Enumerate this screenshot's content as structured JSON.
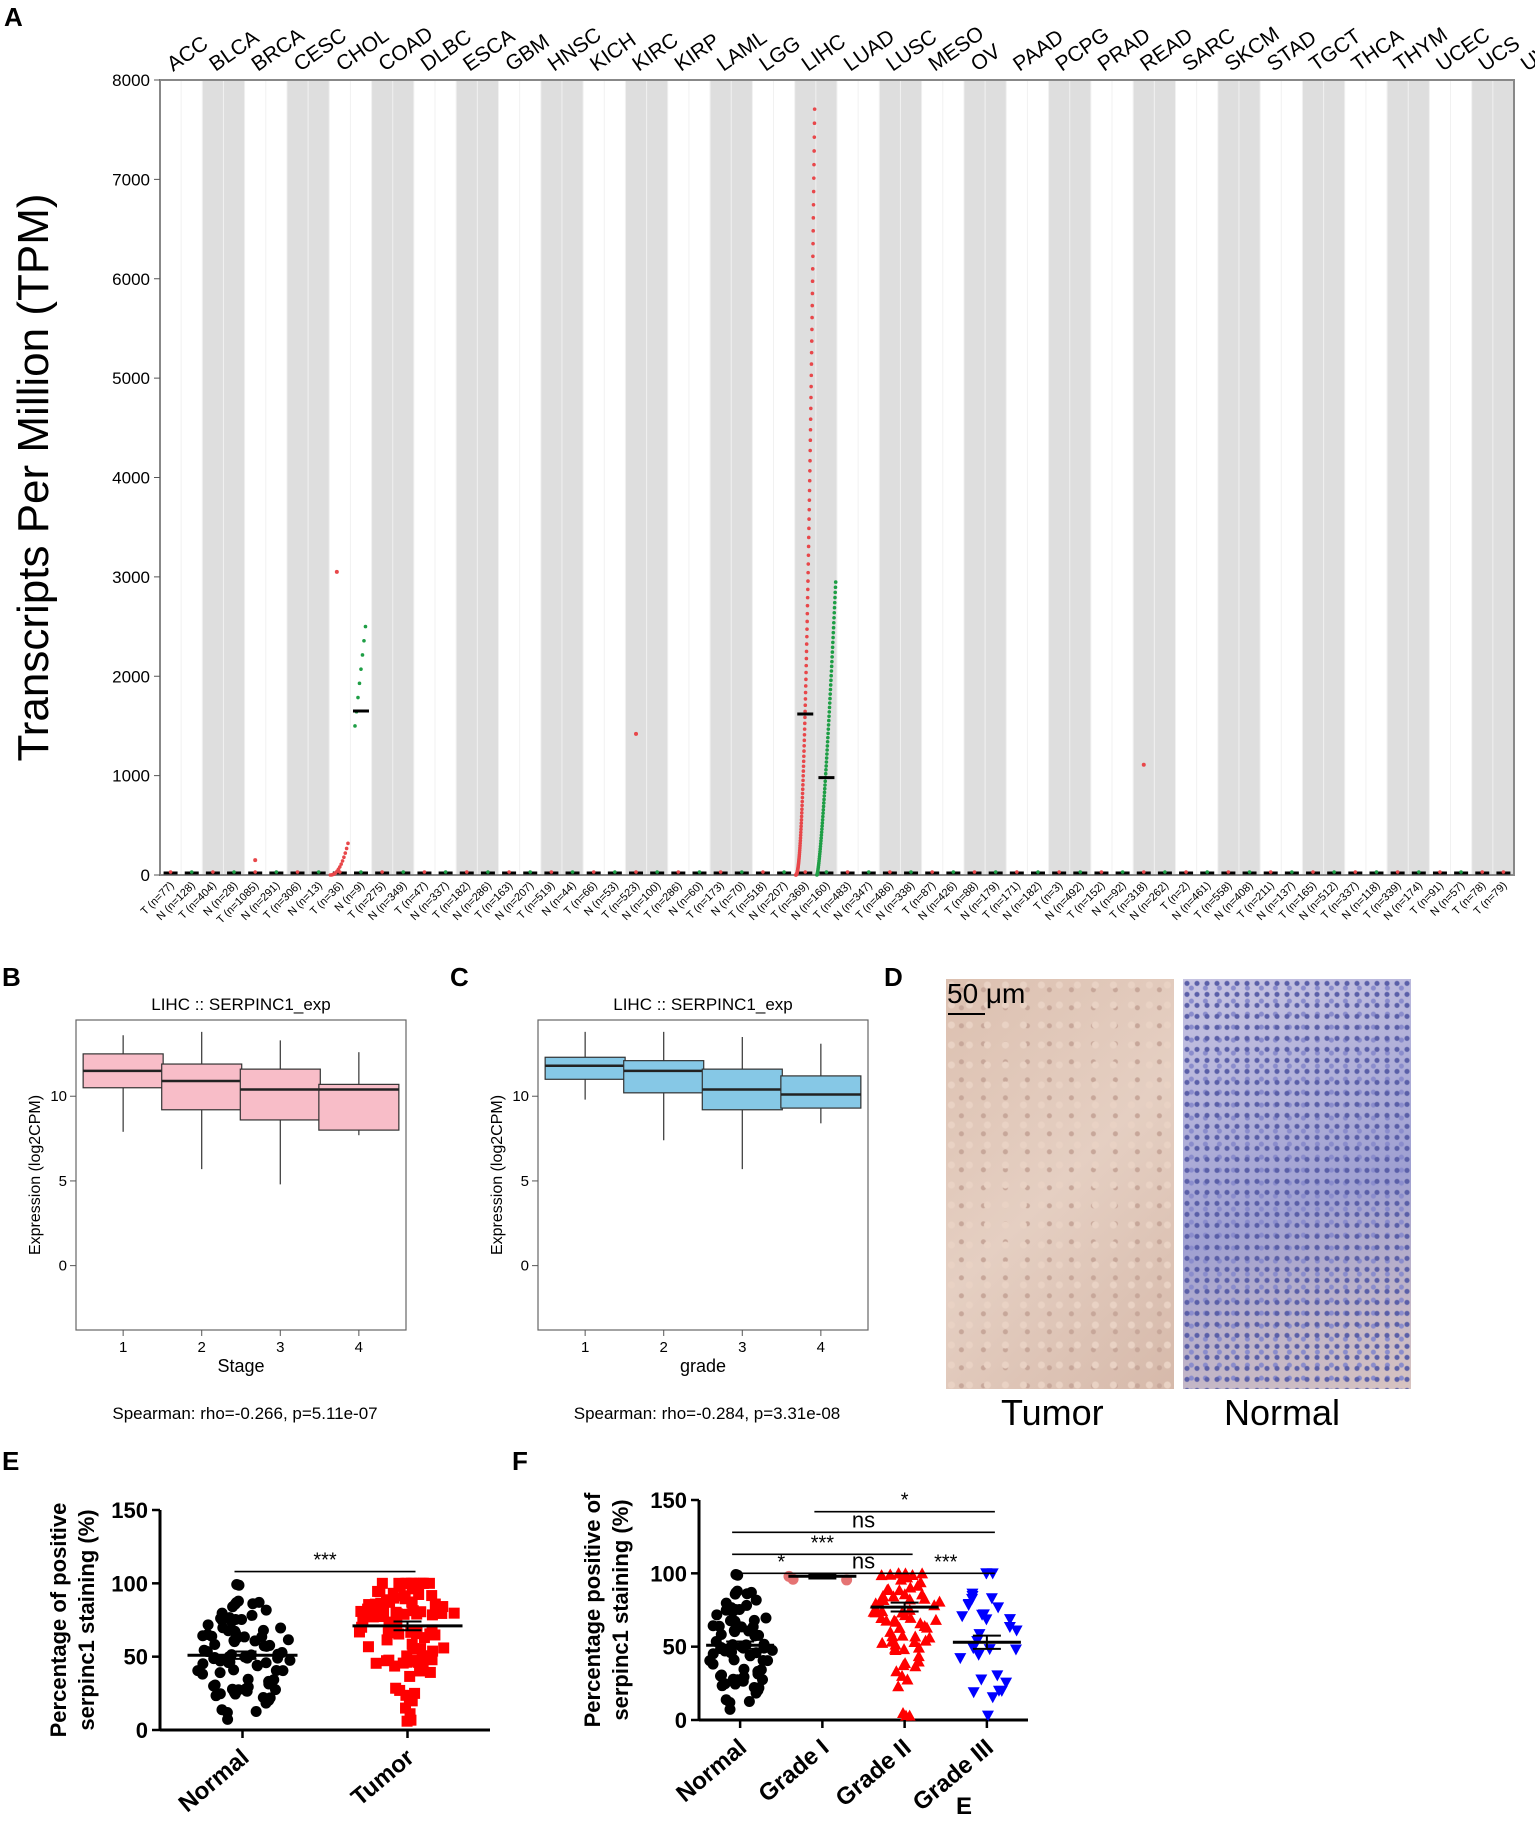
{
  "panels": {
    "a": "A",
    "b": "B",
    "c": "C",
    "d": "D",
    "e": "E",
    "f": "F",
    "stray": "E"
  },
  "chart_data": [
    {
      "id": "A",
      "type": "scatter",
      "ylabel": "Transcripts Per Million (TPM)",
      "ylim": [
        0,
        8000
      ],
      "yticks": [
        0,
        1000,
        2000,
        3000,
        4000,
        5000,
        6000,
        7000,
        8000
      ],
      "cancers": [
        "ACC",
        "BLCA",
        "BRCA",
        "CESC",
        "CHOL",
        "COAD",
        "DLBC",
        "ESCA",
        "GBM",
        "HNSC",
        "KICH",
        "KIRC",
        "KIRP",
        "LAML",
        "LGG",
        "LIHC",
        "LUAD",
        "LUSC",
        "MESO",
        "OV",
        "PAAD",
        "PCPG",
        "PRAD",
        "READ",
        "SARC",
        "SKCM",
        "STAD",
        "TGCT",
        "THCA",
        "THYM",
        "UCEC",
        "UCS",
        "UVM"
      ],
      "groups": [
        "T (n=77)",
        "N (n=128)",
        "T (n=404)",
        "N (n=28)",
        "T (n=1085)",
        "N (n=291)",
        "T (n=306)",
        "N (n=13)",
        "T (n=36)",
        "N (n=9)",
        "T (n=275)",
        "N (n=349)",
        "T (n=47)",
        "N (n=337)",
        "T (n=182)",
        "N (n=286)",
        "T (n=163)",
        "N (n=207)",
        "T (n=519)",
        "N (n=44)",
        "T (n=66)",
        "N (n=53)",
        "T (n=523)",
        "N (n=100)",
        "T (n=286)",
        "N (n=60)",
        "T (n=173)",
        "N (n=70)",
        "T (n=518)",
        "N (n=207)",
        "T (n=369)",
        "N (n=160)",
        "T (n=483)",
        "N (n=347)",
        "T (n=486)",
        "N (n=338)",
        "T (n=87)",
        "N (n=426)",
        "T (n=88)",
        "N (n=179)",
        "T (n=171)",
        "N (n=182)",
        "T (n=3)",
        "N (n=492)",
        "T (n=152)",
        "N (n=92)",
        "T (n=318)",
        "N (n=262)",
        "T (n=2)",
        "N (n=461)",
        "T (n=558)",
        "N (n=408)",
        "T (n=211)",
        "N (n=137)",
        "T (n=165)",
        "N (n=512)",
        "T (n=337)",
        "N (n=118)",
        "T (n=339)",
        "N (n=174)",
        "T (n=91)",
        "N (n=57)",
        "T (n=78)",
        "T (n=79)"
      ],
      "highlights": [
        {
          "cancer": "CHOL",
          "tumor_median": 1650,
          "tumor_max": 2500,
          "normal_max": 3050
        },
        {
          "cancer": "LIHC",
          "tumor_median": 1620,
          "tumor_max": 7850,
          "normal_median": 980,
          "normal_max": 3000
        }
      ],
      "outliers": [
        {
          "cancer": "KIRC",
          "value": 1420
        },
        {
          "cancer": "READ",
          "value": 1110
        },
        {
          "cancer": "BRCA",
          "value": 150
        }
      ],
      "colors": {
        "tumor": "#e8474a",
        "normal": "#1e9e45",
        "band": "#dedede"
      }
    },
    {
      "id": "B",
      "type": "box",
      "title": "LIHC  ::  SERPINC1_exp",
      "xlabel": "Stage",
      "ylabel": "Expression (log2CPM)",
      "ylim": [
        -3.8,
        14.5
      ],
      "yticks": [
        0,
        5,
        10
      ],
      "categories": [
        "1",
        "2",
        "3",
        "4"
      ],
      "boxes": [
        {
          "min": 7.9,
          "q1": 10.5,
          "median": 11.5,
          "q3": 12.5,
          "max": 13.6
        },
        {
          "min": 5.7,
          "q1": 9.2,
          "median": 10.9,
          "q3": 11.9,
          "max": 13.8
        },
        {
          "min": 4.8,
          "q1": 8.6,
          "median": 10.4,
          "q3": 11.6,
          "max": 13.3
        },
        {
          "min": 7.7,
          "q1": 8.0,
          "median": 10.4,
          "q3": 10.7,
          "max": 12.6
        }
      ],
      "fill": "#f8bdc8",
      "footer": "Spearman: rho=-0.266, p=5.11e-07"
    },
    {
      "id": "C",
      "type": "box",
      "title": "LIHC  ::  SERPINC1_exp",
      "xlabel": "grade",
      "ylabel": "Expression (log2CPM)",
      "ylim": [
        -3.8,
        14.5
      ],
      "yticks": [
        0,
        5,
        10
      ],
      "categories": [
        "1",
        "2",
        "3",
        "4"
      ],
      "boxes": [
        {
          "min": 9.8,
          "q1": 11.0,
          "median": 11.8,
          "q3": 12.3,
          "max": 13.8
        },
        {
          "min": 7.4,
          "q1": 10.2,
          "median": 11.5,
          "q3": 12.1,
          "max": 13.8
        },
        {
          "min": 5.7,
          "q1": 9.2,
          "median": 10.4,
          "q3": 11.6,
          "max": 13.5
        },
        {
          "min": 8.4,
          "q1": 9.3,
          "median": 10.1,
          "q3": 11.2,
          "max": 13.1
        }
      ],
      "fill": "#86c8e6",
      "footer": "Spearman: rho=-0.284, p=3.31e-08"
    },
    {
      "id": "E",
      "type": "scatter",
      "ylabel": "Percentage of positive serpinc1 staining (%)",
      "ylabel_lines": [
        "Percentage of positive",
        "serpinc1 staining (%)"
      ],
      "ylim": [
        0,
        150
      ],
      "yticks": [
        0,
        50,
        100,
        150
      ],
      "categories": [
        "Normal",
        "Tumor"
      ],
      "means": [
        51,
        71
      ],
      "sem": [
        2.5,
        3
      ],
      "significance": [
        {
          "from": 0,
          "to": 1,
          "label": "***",
          "y": 108
        }
      ],
      "colors": [
        "#000000",
        "#ff0000"
      ]
    },
    {
      "id": "F",
      "type": "scatter",
      "ylabel": "Percentage positive of serpinc1 staining (%)",
      "ylabel_lines": [
        "Percentage positive of",
        "serpinc1 staining (%)"
      ],
      "ylim": [
        0,
        150
      ],
      "yticks": [
        0,
        50,
        100,
        150
      ],
      "categories": [
        "Normal",
        "Grade I",
        "Grade II",
        "Grade III"
      ],
      "means": [
        51,
        98,
        77,
        53
      ],
      "sem": [
        2.5,
        1.5,
        3,
        4.5
      ],
      "significance": [
        {
          "from": 1,
          "to": 3,
          "label": "*",
          "y": 142
        },
        {
          "from": 0,
          "to": 3,
          "label": "ns",
          "y": 128
        },
        {
          "from": 0,
          "to": 2,
          "label": "***",
          "y": 113
        },
        {
          "from": 0,
          "to": 1,
          "label": "*",
          "y": 100
        },
        {
          "from": 1,
          "to": 2,
          "label": "ns",
          "y": 100
        },
        {
          "from": 2,
          "to": 3,
          "label": "***",
          "y": 100
        }
      ],
      "colors": [
        "#000000",
        "#e57373",
        "#ff0000",
        "#0000ff"
      ]
    }
  ],
  "ihc": {
    "scale": "50 μm",
    "tumor_label": "Tumor",
    "normal_label": "Normal"
  }
}
